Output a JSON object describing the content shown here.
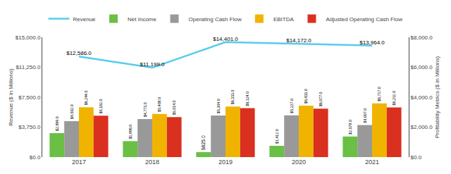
{
  "chart_data": {
    "type": "bar",
    "categories": [
      "2017",
      "2018",
      "2019",
      "2020",
      "2021"
    ],
    "series": [
      {
        "name": "Revenue",
        "type": "line",
        "color": "#55ccee",
        "values": [
          12586.0,
          11199.0,
          14401.0,
          14172.0,
          13964.0
        ],
        "value_labels": [
          "$12,586.0",
          "$11,199.0",
          "$14,401.0",
          "$14,172.0",
          "$13,964.0"
        ]
      },
      {
        "name": "Net Income",
        "type": "bar",
        "color": "#6abf45",
        "values": [
          2999.0,
          1996.0,
          625.0,
          1412.0,
          2579.0
        ],
        "value_labels": [
          "$2,999.0",
          "$1,996.0",
          "$625.0",
          "$1,412.0",
          "$2,579.0"
        ]
      },
      {
        "name": "Operating Cash Flow",
        "type": "bar",
        "color": "#999999",
        "values": [
          4502.0,
          4773.0,
          5204.0,
          5227.0,
          4007.0
        ],
        "value_labels": [
          "$4,502.0",
          "$4,773.0",
          "$5,204.0",
          "$5,227.0",
          "$4,007.0"
        ]
      },
      {
        "name": "EBITDA",
        "type": "bar",
        "color": "#f0b400",
        "values": [
          6244.0,
          5408.0,
          6333.0,
          6435.0,
          6717.0
        ],
        "value_labels": [
          "$6,244.0",
          "$5,408.0",
          "$6,333.0",
          "$6,435.0",
          "$6,717.0"
        ]
      },
      {
        "name": "Adjusted Operating Cash Flow",
        "type": "bar",
        "color": "#d93020",
        "values": [
          5182.0,
          5014.0,
          6124.0,
          6077.0,
          6211.0
        ],
        "value_labels": [
          "$5,182.0",
          "$5,014.0",
          "$6,124.0",
          "$6,077.0",
          "$6,211.0"
        ]
      }
    ],
    "ylabel": "Revenue ($ in Millions)",
    "y2label": "Profitability Metrics ($ in Millions)",
    "ylim": [
      0,
      15000
    ],
    "yticks": [
      {
        "value": 0,
        "label": "$0.0"
      },
      {
        "value": 3750,
        "label": "$3,750.0"
      },
      {
        "value": 7500,
        "label": "$7,500.0"
      },
      {
        "value": 11250,
        "label": "$11,250.0"
      },
      {
        "value": 15000,
        "label": "$15,000.0"
      }
    ],
    "y2lim": [
      0,
      8000
    ],
    "y2ticks": [
      {
        "value": 0,
        "label": "$0.0"
      },
      {
        "value": 2000,
        "label": "$2,000.0"
      },
      {
        "value": 4000,
        "label": "$4,000.0"
      },
      {
        "value": 6000,
        "label": "$6,000.0"
      },
      {
        "value": 8000,
        "label": "$8,000.0"
      }
    ],
    "data_labels": true,
    "grid": false,
    "legend": "top"
  }
}
